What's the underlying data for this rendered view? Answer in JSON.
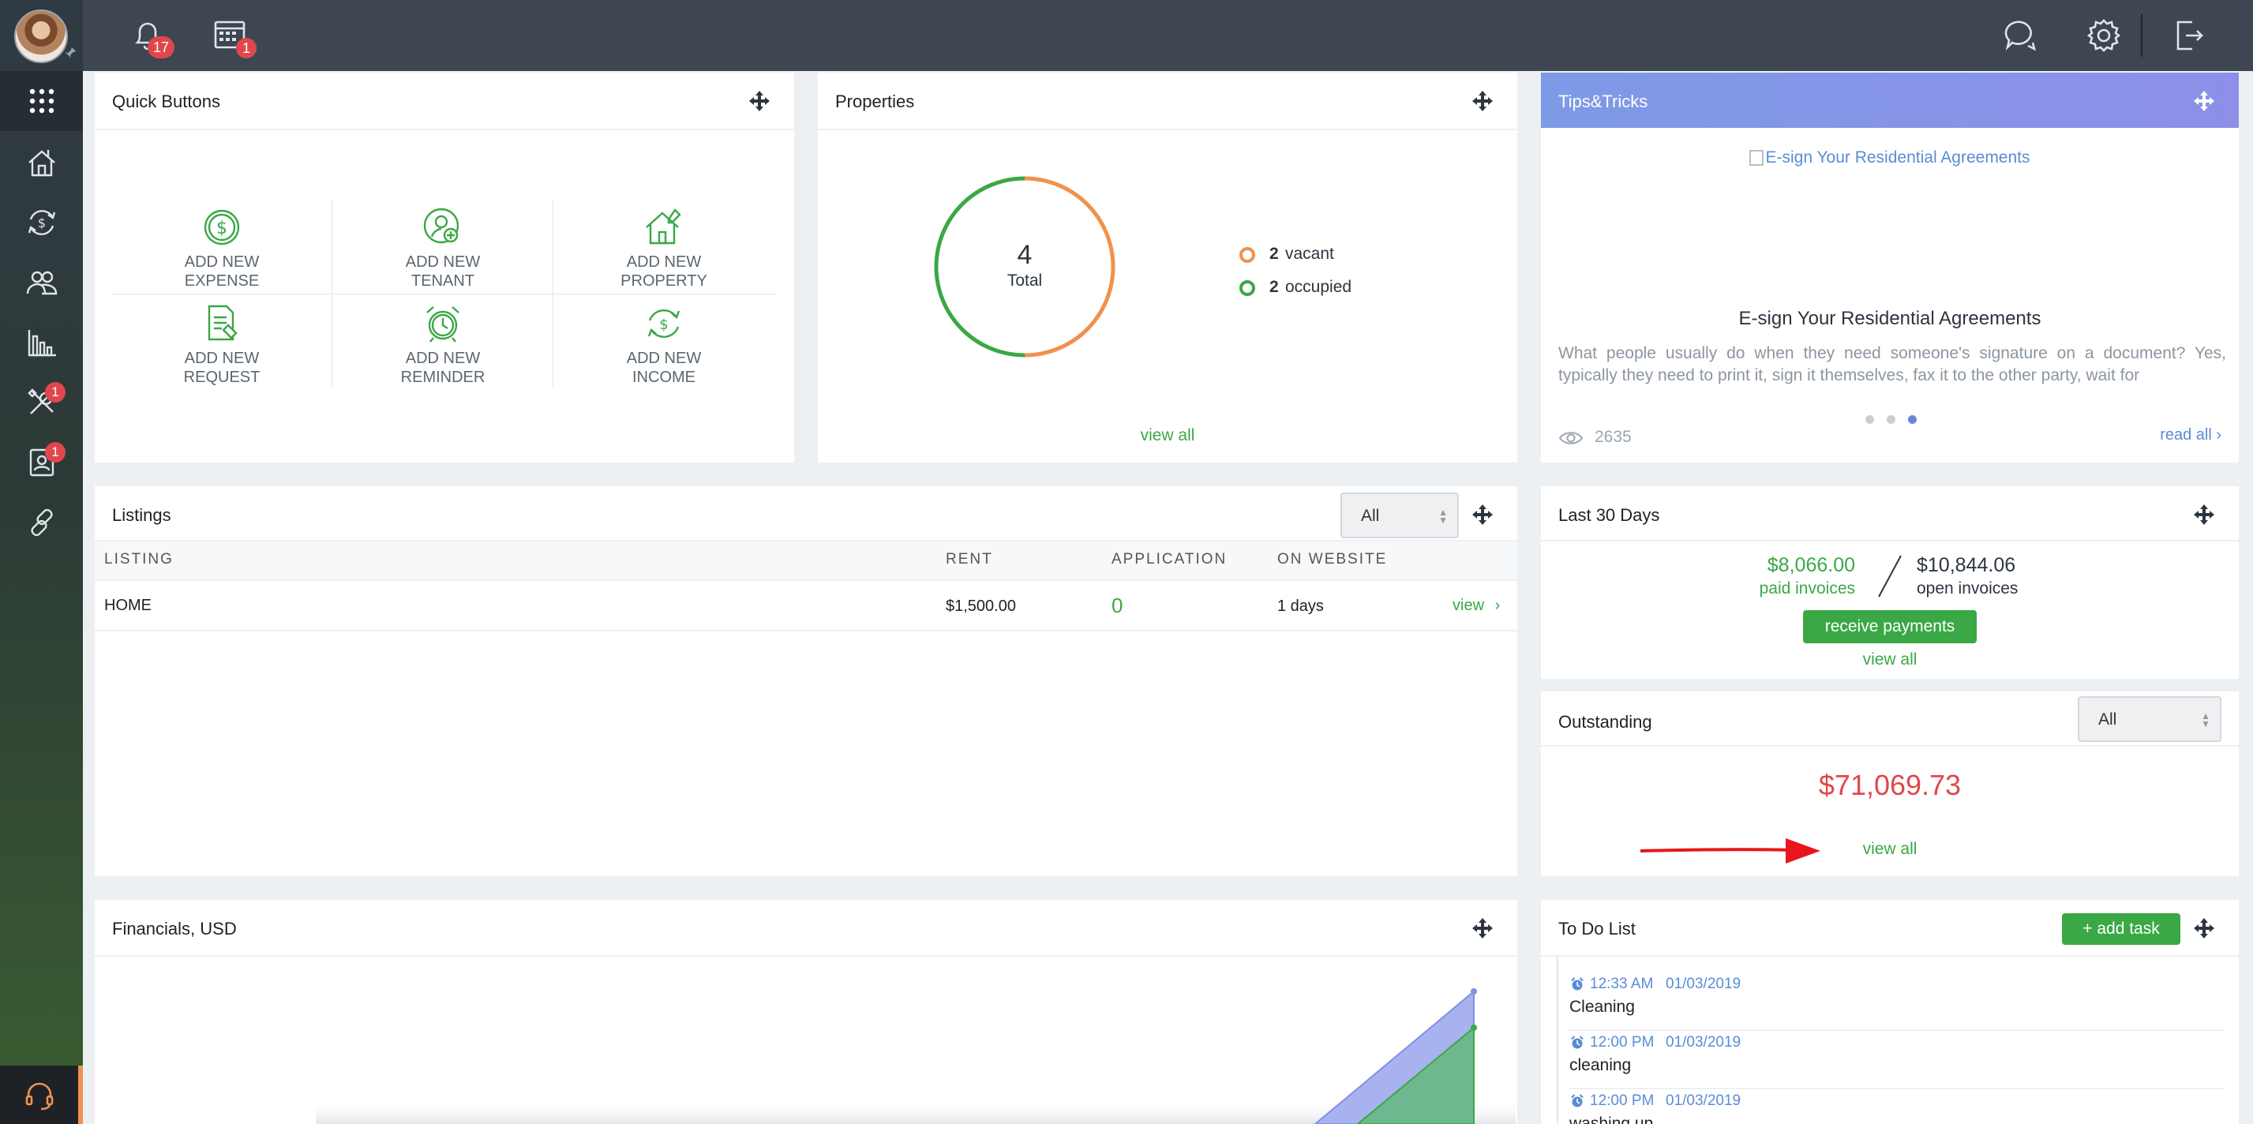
{
  "topbar": {
    "notifications_count": "17",
    "calendar_count": "1"
  },
  "sidebar": {
    "maintenance_badge": "1",
    "contacts_badge": "1"
  },
  "quick_buttons": {
    "title": "Quick Buttons",
    "items": [
      {
        "line1": "ADD NEW",
        "line2": "EXPENSE"
      },
      {
        "line1": "ADD NEW",
        "line2": "TENANT"
      },
      {
        "line1": "ADD NEW",
        "line2": "PROPERTY"
      },
      {
        "line1": "ADD NEW",
        "line2": "REQUEST"
      },
      {
        "line1": "ADD NEW",
        "line2": "REMINDER"
      },
      {
        "line1": "ADD NEW",
        "line2": "INCOME"
      }
    ]
  },
  "properties": {
    "title": "Properties",
    "total": "4",
    "total_label": "Total",
    "vacant_count": "2",
    "vacant_label": "vacant",
    "occupied_count": "2",
    "occupied_label": "occupied",
    "view_all": "view all",
    "colors": {
      "vacant": "#f0914d",
      "occupied": "#3aa845"
    }
  },
  "tips": {
    "title": "Tips&Tricks",
    "image_alt": "E-sign Your Residential Agreements",
    "heading": "E-sign Your Residential Agreements",
    "body": "What people usually do when they need someone's signature on a document? Yes, typically they need to print it, sign it themselves, fax it to the other party, wait for",
    "views": "2635",
    "read_all": "read all ›"
  },
  "listings": {
    "title": "Listings",
    "filter": "All",
    "columns": [
      "LISTING",
      "RENT",
      "APPLICATION",
      "ON WEBSITE"
    ],
    "rows": [
      {
        "listing": "HOME",
        "rent": "$1,500.00",
        "application": "0",
        "on_website": "1 days",
        "action": "view"
      }
    ]
  },
  "last30": {
    "title": "Last 30 Days",
    "paid_amount": "$8,066.00",
    "paid_label": "paid invoices",
    "open_amount": "$10,844.06",
    "open_label": "open invoices",
    "button": "receive payments",
    "view_all": "view all"
  },
  "outstanding": {
    "title": "Outstanding",
    "filter": "All",
    "amount": "$71,069.73",
    "view_all": "view all"
  },
  "financials": {
    "title": "Financials, USD"
  },
  "todo": {
    "title": "To Do List",
    "add_button": "+ add task",
    "items": [
      {
        "time": "12:33 AM",
        "date": "01/03/2019",
        "text": "Cleaning"
      },
      {
        "time": "12:00 PM",
        "date": "01/03/2019",
        "text": "cleaning"
      },
      {
        "time": "12:00 PM",
        "date": "01/03/2019",
        "text": "washing up"
      }
    ]
  }
}
